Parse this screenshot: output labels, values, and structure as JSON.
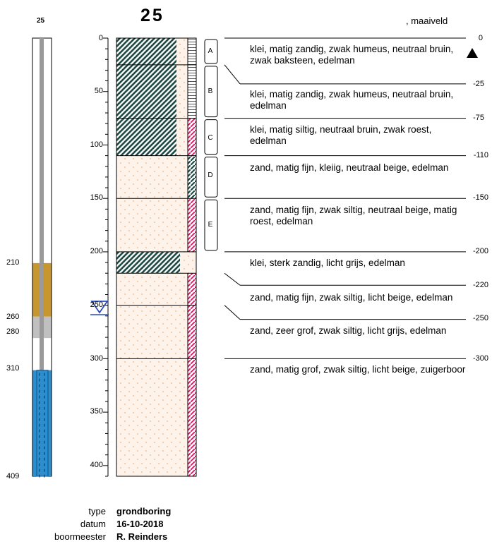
{
  "header": {
    "well_id_small": "25",
    "boring_id": "25",
    "surface_label": ", maaiveld"
  },
  "well": {
    "depth_labels": [
      "210",
      "260",
      "280",
      "310",
      "409"
    ],
    "sections": [
      {
        "from": 0,
        "to": 210,
        "type": "casing",
        "color": "#ffffff"
      },
      {
        "from": 210,
        "to": 260,
        "type": "bentonite",
        "color": "#c8962e"
      },
      {
        "from": 260,
        "to": 280,
        "type": "gravel",
        "color": "#c0c0c0"
      },
      {
        "from": 280,
        "to": 310,
        "type": "casing",
        "color": "#ffffff"
      },
      {
        "from": 310,
        "to": 409,
        "type": "filter",
        "color": "#2a8fd0"
      }
    ],
    "max_depth": 409
  },
  "scale": {
    "ticks": [
      "0",
      "50",
      "100",
      "150",
      "200",
      "250",
      "300",
      "350",
      "400"
    ],
    "max": 410
  },
  "layers": [
    {
      "from": 0,
      "to": 25,
      "lith": "clay",
      "desc": "klei, matig zandig, zwak humeus, neutraal bruin, zwak baksteen, edelman",
      "side": "brick"
    },
    {
      "from": 25,
      "to": 75,
      "lith": "clay",
      "desc": "klei, matig zandig, zwak humeus, neutraal bruin, edelman",
      "side": "brick"
    },
    {
      "from": 75,
      "to": 110,
      "lith": "clay",
      "desc": "klei, matig siltig, neutraal bruin, zwak roest, edelman",
      "side": "rust"
    },
    {
      "from": 110,
      "to": 150,
      "lith": "sand",
      "desc": "zand, matig fijn, kleiig, neutraal beige, edelman",
      "side": "clay"
    },
    {
      "from": 150,
      "to": 200,
      "lith": "sand",
      "desc": "zand, matig fijn, zwak siltig, neutraal beige, matig roest, edelman",
      "side": "rust"
    },
    {
      "from": 200,
      "to": 220,
      "lith": "clay",
      "desc": "klei, sterk zandig, licht grijs, edelman",
      "side": "none"
    },
    {
      "from": 220,
      "to": 250,
      "lith": "sand",
      "desc": "zand, matig fijn, zwak siltig, licht beige, edelman",
      "side": "rust"
    },
    {
      "from": 250,
      "to": 300,
      "lith": "sand",
      "desc": "zand, zeer grof, zwak siltig, licht grijs, edelman",
      "side": "rust"
    },
    {
      "from": 300,
      "to": 410,
      "lith": "sand",
      "desc": "zand, matig grof, zwak siltig, licht beige, zuigerboor",
      "side": "rust"
    }
  ],
  "layer_depth_labels": [
    "0",
    "-25",
    "-75",
    "-110",
    "-150",
    "-200",
    "-220",
    "-250",
    "-300"
  ],
  "samples": [
    {
      "label": "A",
      "from": 0,
      "to": 25
    },
    {
      "label": "B",
      "from": 25,
      "to": 75
    },
    {
      "label": "C",
      "from": 75,
      "to": 110
    },
    {
      "label": "D",
      "from": 110,
      "to": 150
    },
    {
      "label": "E",
      "from": 150,
      "to": 200
    }
  ],
  "groundwater_depth": 250,
  "footer": {
    "type_key": "type",
    "type_val": "grondboring",
    "date_key": "datum",
    "date_val": "16-10-2018",
    "driller_key": "boormeester",
    "driller_val": "R. Reinders"
  }
}
